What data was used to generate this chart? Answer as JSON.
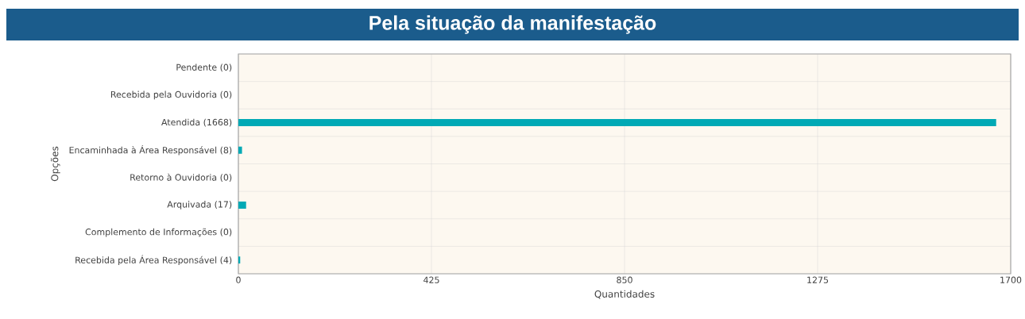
{
  "chart_data": {
    "type": "bar",
    "orientation": "horizontal",
    "title": "Pela situação da manifestação",
    "xlabel": "Quantidades",
    "ylabel": "Opções",
    "categories": [
      "Pendente (0)",
      "Recebida pela Ouvidoria (0)",
      "Atendida (1668)",
      "Encaminhada à Área Responsável (8)",
      "Retorno à Ouvidoria (0)",
      "Arquivada (17)",
      "Complemento de Informações (0)",
      "Recebida pela Área Responsável (4)"
    ],
    "values": [
      0,
      0,
      1668,
      8,
      0,
      17,
      0,
      4
    ],
    "color": "#00a9b5",
    "xlim": [
      0,
      1700
    ],
    "xticks": [
      0,
      425,
      850,
      1275,
      1700
    ],
    "grid": true
  }
}
